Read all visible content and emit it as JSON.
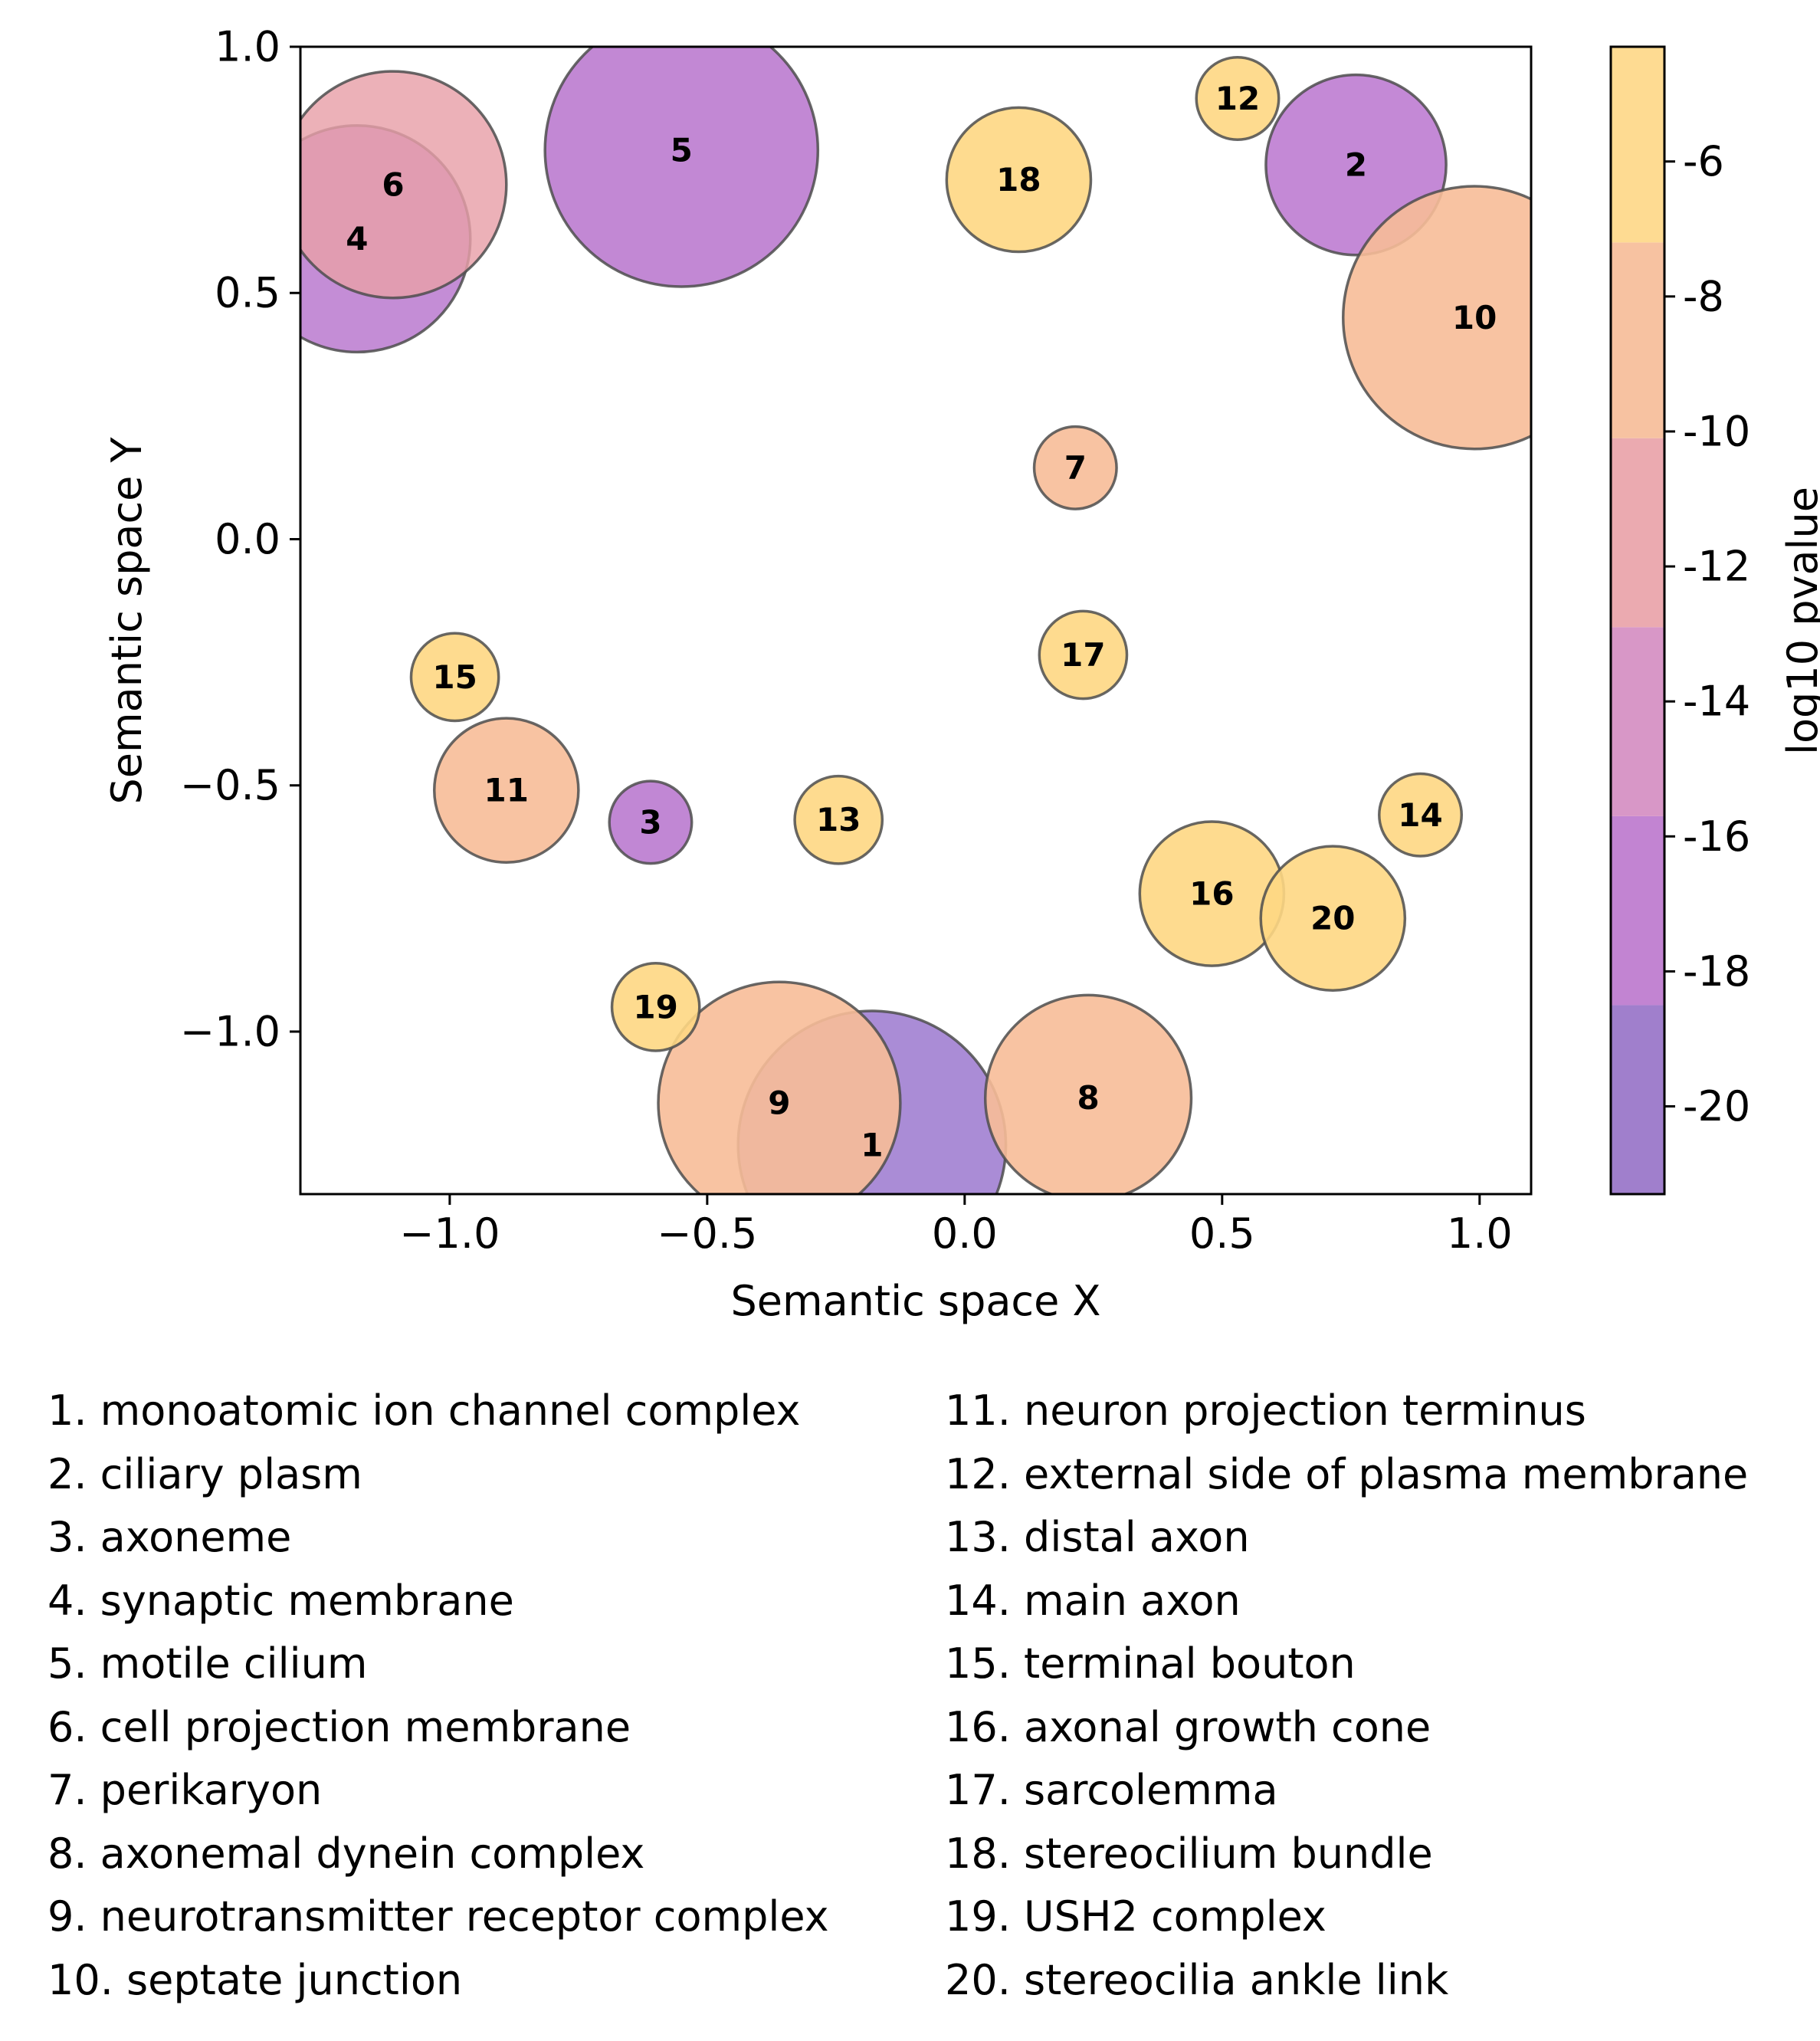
{
  "chart_data": {
    "type": "scatter",
    "xlabel": "Semantic space X",
    "ylabel": "Semantic space Y",
    "xlim": [
      -1.29,
      1.1
    ],
    "ylim": [
      -1.33,
      1.0
    ],
    "xticks": [
      -1.0,
      -0.5,
      0.0,
      0.5,
      1.0
    ],
    "xtick_labels": [
      "−1.0",
      "−0.5",
      "0.0",
      "0.5",
      "1.0"
    ],
    "yticks": [
      1.0,
      0.5,
      0.0,
      -0.5,
      -1.0
    ],
    "ytick_labels": [
      "1.0",
      "0.5",
      "0.0",
      "−0.5",
      "−1.0"
    ],
    "grid": false,
    "colorbar": {
      "label": "log10 pvalue",
      "range": [
        -21.3,
        -4.3
      ],
      "bands": [
        {
          "from": -21.3,
          "to": -18.5,
          "color": "#a07fcc"
        },
        {
          "from": -18.5,
          "to": -15.7,
          "color": "#c284d2"
        },
        {
          "from": -15.7,
          "to": -12.9,
          "color": "#d897c7"
        },
        {
          "from": -12.9,
          "to": -10.1,
          "color": "#ebaab0"
        },
        {
          "from": -10.1,
          "to": -7.2,
          "color": "#f7c2a1"
        },
        {
          "from": -7.2,
          "to": -4.3,
          "color": "#fedb92"
        }
      ],
      "ticks": [
        -6,
        -8,
        -10,
        -12,
        -14,
        -16,
        -18,
        -20
      ],
      "tick_labels": [
        "-6",
        "-8",
        "-10",
        "-12",
        "-14",
        "-16",
        "-18",
        "-20"
      ]
    },
    "points": [
      {
        "id": "1",
        "x": -0.18,
        "y": -1.23,
        "size": 0.26,
        "color": "#8e66c8",
        "alpha": 0.75
      },
      {
        "id": "2",
        "x": 0.76,
        "y": 0.76,
        "size": 0.175,
        "color": "#b76fcd",
        "alpha": 0.82
      },
      {
        "id": "3",
        "x": -0.61,
        "y": -0.575,
        "size": 0.08,
        "color": "#b36ccb",
        "alpha": 0.82
      },
      {
        "id": "4",
        "x": -1.18,
        "y": 0.61,
        "size": 0.22,
        "color": "#b36dcb",
        "alpha": 0.78
      },
      {
        "id": "5",
        "x": -0.55,
        "y": 0.79,
        "size": 0.265,
        "color": "#b46ecb",
        "alpha": 0.82
      },
      {
        "id": "6",
        "x": -1.11,
        "y": 0.72,
        "size": 0.22,
        "color": "#e8a0a8",
        "alpha": 0.82
      },
      {
        "id": "7",
        "x": 0.215,
        "y": 0.145,
        "size": 0.08,
        "color": "#f7bd98",
        "alpha": 0.9
      },
      {
        "id": "8",
        "x": 0.24,
        "y": -1.135,
        "size": 0.2,
        "color": "#f7bd98",
        "alpha": 0.9
      },
      {
        "id": "9",
        "x": -0.36,
        "y": -1.145,
        "size": 0.235,
        "color": "#f7bd98",
        "alpha": 0.9
      },
      {
        "id": "10",
        "x": 0.99,
        "y": 0.45,
        "size": 0.255,
        "color": "#f7bd98",
        "alpha": 0.9
      },
      {
        "id": "11",
        "x": -0.89,
        "y": -0.51,
        "size": 0.14,
        "color": "#f7bd98",
        "alpha": 0.9
      },
      {
        "id": "12",
        "x": 0.53,
        "y": 0.895,
        "size": 0.08,
        "color": "#fed783",
        "alpha": 0.9
      },
      {
        "id": "13",
        "x": -0.245,
        "y": -0.57,
        "size": 0.085,
        "color": "#fed783",
        "alpha": 0.9
      },
      {
        "id": "14",
        "x": 0.885,
        "y": -0.56,
        "size": 0.08,
        "color": "#fed783",
        "alpha": 0.9
      },
      {
        "id": "15",
        "x": -0.99,
        "y": -0.28,
        "size": 0.085,
        "color": "#fed783",
        "alpha": 0.9
      },
      {
        "id": "16",
        "x": 0.48,
        "y": -0.72,
        "size": 0.14,
        "color": "#fed783",
        "alpha": 0.9
      },
      {
        "id": "17",
        "x": 0.23,
        "y": -0.235,
        "size": 0.085,
        "color": "#fed783",
        "alpha": 0.9
      },
      {
        "id": "18",
        "x": 0.105,
        "y": 0.73,
        "size": 0.14,
        "color": "#fed783",
        "alpha": 0.9
      },
      {
        "id": "19",
        "x": -0.6,
        "y": -0.95,
        "size": 0.085,
        "color": "#fed783",
        "alpha": 0.9
      },
      {
        "id": "20",
        "x": 0.715,
        "y": -0.77,
        "size": 0.14,
        "color": "#fed783",
        "alpha": 0.9
      }
    ],
    "legend_entries": [
      "1. monoatomic ion channel complex",
      "2. ciliary plasm",
      "3. axoneme",
      "4. synaptic membrane",
      "5. motile cilium",
      "6. cell projection membrane",
      "7. perikaryon",
      "8. axonemal dynein complex",
      "9. neurotransmitter receptor complex",
      "10. septate junction",
      "11. neuron projection terminus",
      "12. external side of plasma membrane",
      "13. distal axon",
      "14. main axon",
      "15. terminal bouton",
      "16. axonal growth cone",
      "17. sarcolemma",
      "18. stereocilium bundle",
      "19. USH2 complex",
      "20. stereocilia ankle link"
    ]
  }
}
